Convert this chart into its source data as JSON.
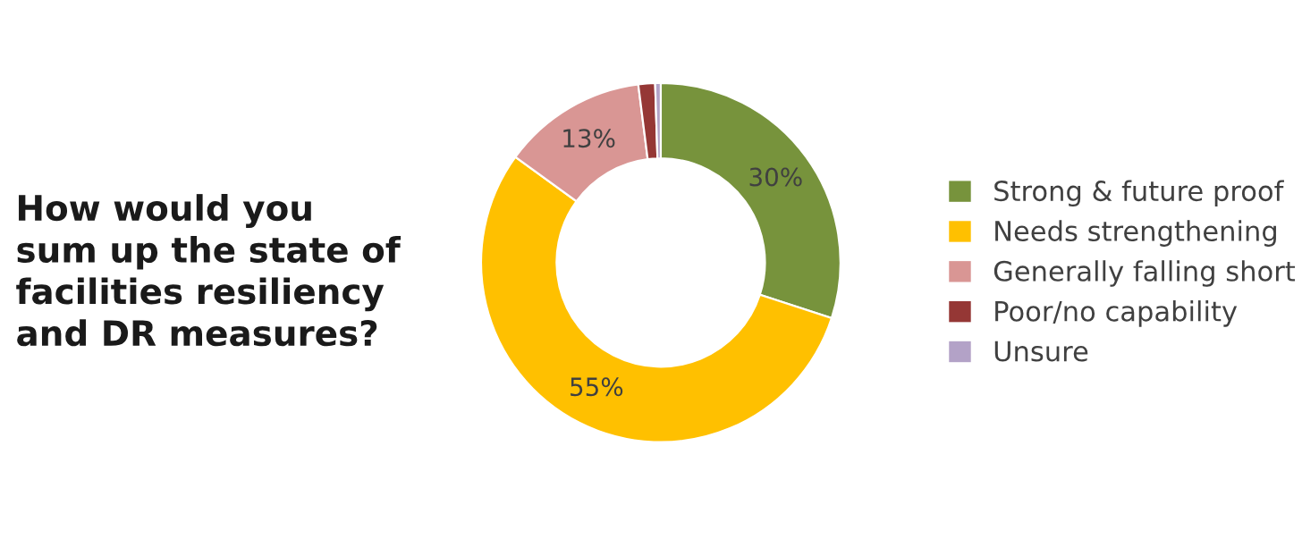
{
  "chart_data": {
    "type": "donut",
    "title": "How would you\nsum up the state of\nfacilities resiliency\nand DR measures?",
    "categories": [
      "Strong & future proof",
      "Needs strengthening",
      "Generally falling short",
      "Poor/no capability",
      "Unsure"
    ],
    "values": [
      30,
      55,
      13,
      1.5,
      0.5
    ],
    "colors": [
      "#77933c",
      "#ffc000",
      "#d99694",
      "#953735",
      "#b3a2c7"
    ],
    "value_labels": [
      "30%",
      "55%",
      "13%",
      null,
      null
    ],
    "legend": "right"
  }
}
